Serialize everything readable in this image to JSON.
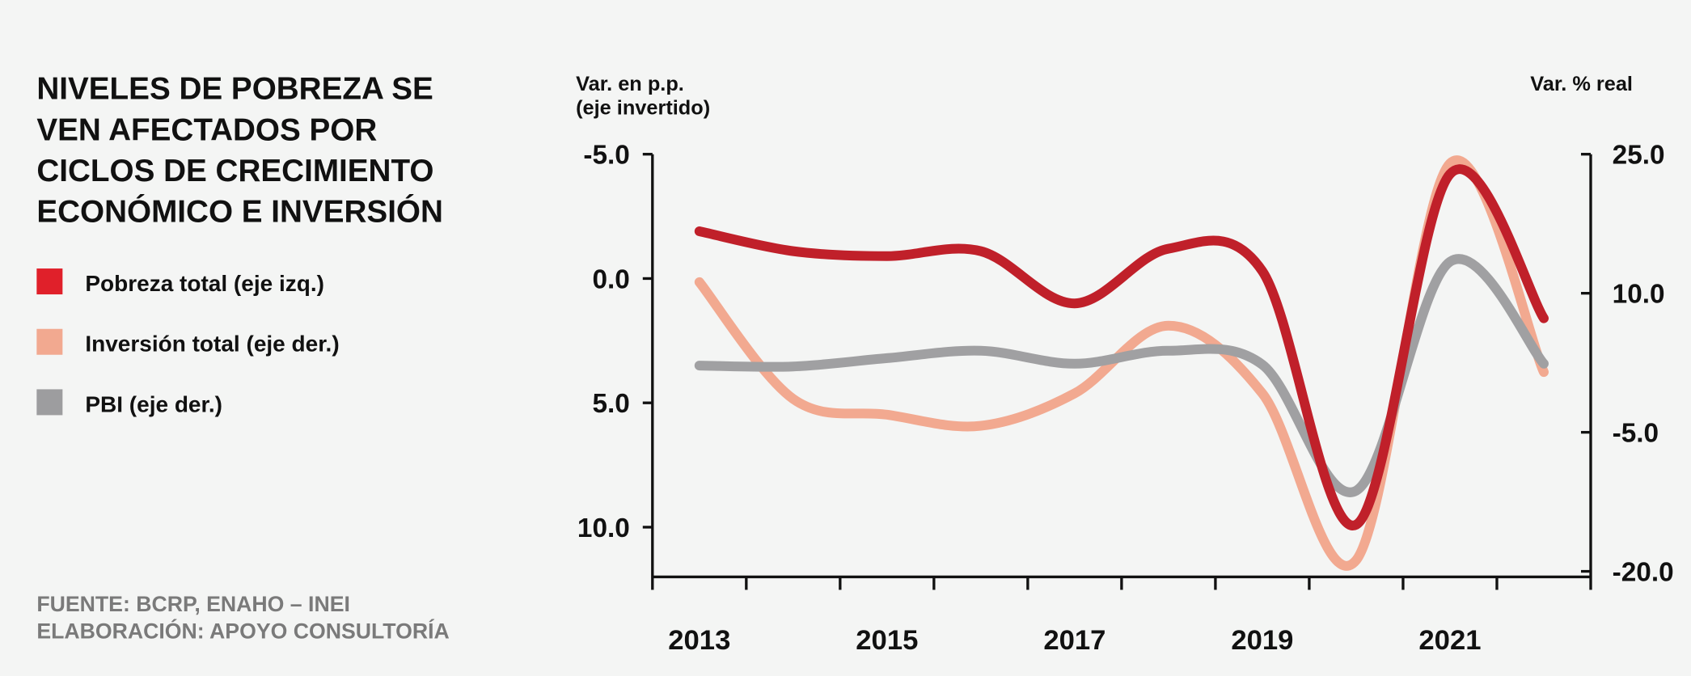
{
  "chart_data": {
    "type": "line",
    "title": [
      "NIVELES DE POBREZA SE",
      "VEN AFECTADOS POR",
      "CICLOS DE CRECIMIENTO",
      "ECONÓMICO E INVERSIÓN"
    ],
    "ylabel": [
      "Var. en p.p.",
      "(eje invertido)"
    ],
    "y2label": "Var. % real",
    "source": [
      "FUENTE: BCRP, ENAHO – INEI",
      "ELABORACIÓN: APOYO CONSULTORÍA"
    ],
    "categories": [
      "2013",
      null,
      "2015",
      null,
      "2017",
      null,
      "2019",
      null,
      "2021",
      null
    ],
    "ylim": [
      -5,
      12
    ],
    "y_inverted": true,
    "yticks": [
      {
        "value": -5,
        "label": "-5.0"
      },
      {
        "value": 0,
        "label": "0.0"
      },
      {
        "value": 5,
        "label": "5.0"
      },
      {
        "value": 10,
        "label": "10.0"
      }
    ],
    "y2lim": [
      -20.6,
      25
    ],
    "y2ticks": [
      {
        "value": 25,
        "label": "25.0"
      },
      {
        "value": 10,
        "label": "10.0"
      },
      {
        "value": -5,
        "label": "-5.0"
      },
      {
        "value": -20,
        "label": "-20.0"
      }
    ],
    "series": [
      {
        "name": "Pobreza total (eje izq.)",
        "color": "#c0202a",
        "legend_color": "#e0202a",
        "values": [
          -1.9,
          -1.1,
          -0.9,
          -1.1,
          1.0,
          -1.2,
          -0.3,
          9.9,
          -4.2,
          1.6
        ]
      },
      {
        "name": "Inversión total (eje der.)",
        "color": "#f2a990",
        "legend_color": "#f2a990",
        "axis": "y2",
        "values": [
          11.2,
          -1.4,
          -3.1,
          -4.3,
          -0.8,
          6.5,
          -0.8,
          -18.8,
          24,
          1.5
        ]
      },
      {
        "name": "PBI (eje der.)",
        "color": "#a0a0a2",
        "legend_color": "#9d9d9f",
        "axis": "y2",
        "values": [
          2.2,
          2.1,
          3.0,
          3.8,
          2.4,
          3.8,
          2.3,
          -11.3,
          13.4,
          2.4
        ]
      }
    ]
  }
}
